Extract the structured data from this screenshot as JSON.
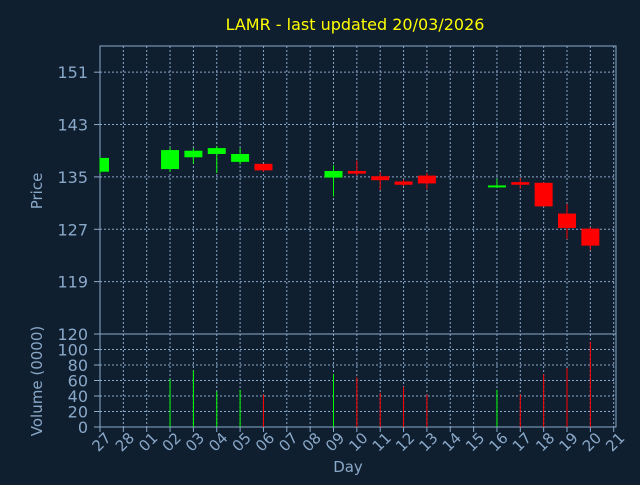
{
  "chart_data": {
    "type": "candlestick",
    "title": "LAMR - last updated 20/03/2026",
    "price_ylabel": "Price",
    "volume_ylabel": "Volume (0000)",
    "xlabel": "Day",
    "price_ticks": [
      151,
      143,
      135,
      127,
      119
    ],
    "price_ylim": [
      111,
      155
    ],
    "volume_ticks": [
      120,
      100,
      80,
      60,
      40,
      20,
      0
    ],
    "volume_ylim": [
      0,
      120
    ],
    "x_ticks": [
      "27",
      "28",
      "01",
      "02",
      "03",
      "04",
      "05",
      "06",
      "07",
      "08",
      "09",
      "10",
      "11",
      "12",
      "13",
      "14",
      "15",
      "16",
      "17",
      "18",
      "19",
      "20",
      "21"
    ],
    "grid": true,
    "colors": {
      "up": "#00ff00",
      "down": "#ff0000",
      "background": "#0f1f30",
      "axis": "#8aa8c8",
      "title": "#ffff00"
    },
    "candles": [
      {
        "day": "27",
        "open": 135.8,
        "high": 138.0,
        "low": 135.5,
        "close": 137.9
      },
      {
        "day": "02",
        "open": 136.2,
        "high": 139.5,
        "low": 135.8,
        "close": 139.1
      },
      {
        "day": "03",
        "open": 138.0,
        "high": 139.4,
        "low": 137.0,
        "close": 139.0
      },
      {
        "day": "04",
        "open": 138.5,
        "high": 139.7,
        "low": 135.6,
        "close": 139.4
      },
      {
        "day": "05",
        "open": 137.3,
        "high": 139.4,
        "low": 136.9,
        "close": 138.5
      },
      {
        "day": "06",
        "open": 137.0,
        "high": 137.0,
        "low": 135.8,
        "close": 136.0
      },
      {
        "day": "09",
        "open": 134.9,
        "high": 136.8,
        "low": 132.0,
        "close": 135.9
      },
      {
        "day": "10",
        "open": 135.9,
        "high": 137.5,
        "low": 135.2,
        "close": 135.5
      },
      {
        "day": "11",
        "open": 135.1,
        "high": 135.7,
        "low": 133.0,
        "close": 134.5
      },
      {
        "day": "12",
        "open": 134.3,
        "high": 134.6,
        "low": 133.6,
        "close": 133.8
      },
      {
        "day": "13",
        "open": 135.2,
        "high": 135.6,
        "low": 133.1,
        "close": 134.0
      },
      {
        "day": "16",
        "open": 133.5,
        "high": 134.7,
        "low": 133.3,
        "close": 133.7
      },
      {
        "day": "17",
        "open": 134.2,
        "high": 134.8,
        "low": 133.2,
        "close": 133.8
      },
      {
        "day": "18",
        "open": 134.1,
        "high": 134.2,
        "low": 130.5,
        "close": 130.5
      },
      {
        "day": "19",
        "open": 129.4,
        "high": 130.9,
        "low": 125.5,
        "close": 127.2
      },
      {
        "day": "20",
        "open": 127.1,
        "high": 127.3,
        "low": 123.8,
        "close": 124.5
      }
    ],
    "volume": [
      {
        "day": "02",
        "value": 62,
        "color": "up"
      },
      {
        "day": "03",
        "value": 73,
        "color": "up"
      },
      {
        "day": "04",
        "value": 46,
        "color": "up"
      },
      {
        "day": "05",
        "value": 48,
        "color": "up"
      },
      {
        "day": "06",
        "value": 42,
        "color": "down"
      },
      {
        "day": "09",
        "value": 68,
        "color": "up"
      },
      {
        "day": "10",
        "value": 64,
        "color": "down"
      },
      {
        "day": "11",
        "value": 44,
        "color": "down"
      },
      {
        "day": "12",
        "value": 52,
        "color": "down"
      },
      {
        "day": "13",
        "value": 42,
        "color": "down"
      },
      {
        "day": "16",
        "value": 48,
        "color": "up"
      },
      {
        "day": "17",
        "value": 42,
        "color": "down"
      },
      {
        "day": "18",
        "value": 68,
        "color": "down"
      },
      {
        "day": "19",
        "value": 76,
        "color": "down"
      },
      {
        "day": "20",
        "value": 110,
        "color": "down"
      }
    ]
  }
}
